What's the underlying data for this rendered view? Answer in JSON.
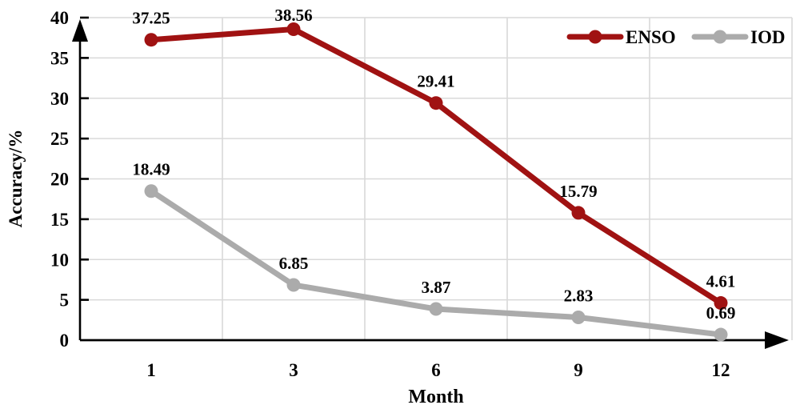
{
  "chart_data": {
    "type": "line",
    "title": "",
    "xlabel": "Month",
    "ylabel": "Accuracy/%",
    "categories": [
      "1",
      "3",
      "6",
      "9",
      "12"
    ],
    "series": [
      {
        "name": "ENSO",
        "color": "#A01212",
        "values": [
          37.25,
          38.56,
          29.41,
          15.79,
          4.61
        ]
      },
      {
        "name": "IOD",
        "color": "#ABABAB",
        "values": [
          18.49,
          6.85,
          3.87,
          2.83,
          0.69
        ]
      }
    ],
    "data_labels": {
      "ENSO": [
        "37.25",
        "38.56",
        "29.41",
        "15.79",
        "4.61"
      ],
      "IOD": [
        "18.49",
        "6.85",
        "3.87",
        "2.83",
        "0.69"
      ]
    },
    "ylim": [
      0,
      40
    ],
    "yticks": [
      0,
      5,
      10,
      15,
      20,
      25,
      30,
      35,
      40
    ],
    "grid": true,
    "legend_position": "top-right",
    "legend": [
      {
        "label": "ENSO",
        "color": "#A01212"
      },
      {
        "label": "IOD",
        "color": "#ABABAB"
      }
    ],
    "colors": {
      "gridline": "#D9D9D9",
      "axis": "#000000",
      "text": "#000000",
      "background": "#FFFFFF"
    }
  }
}
